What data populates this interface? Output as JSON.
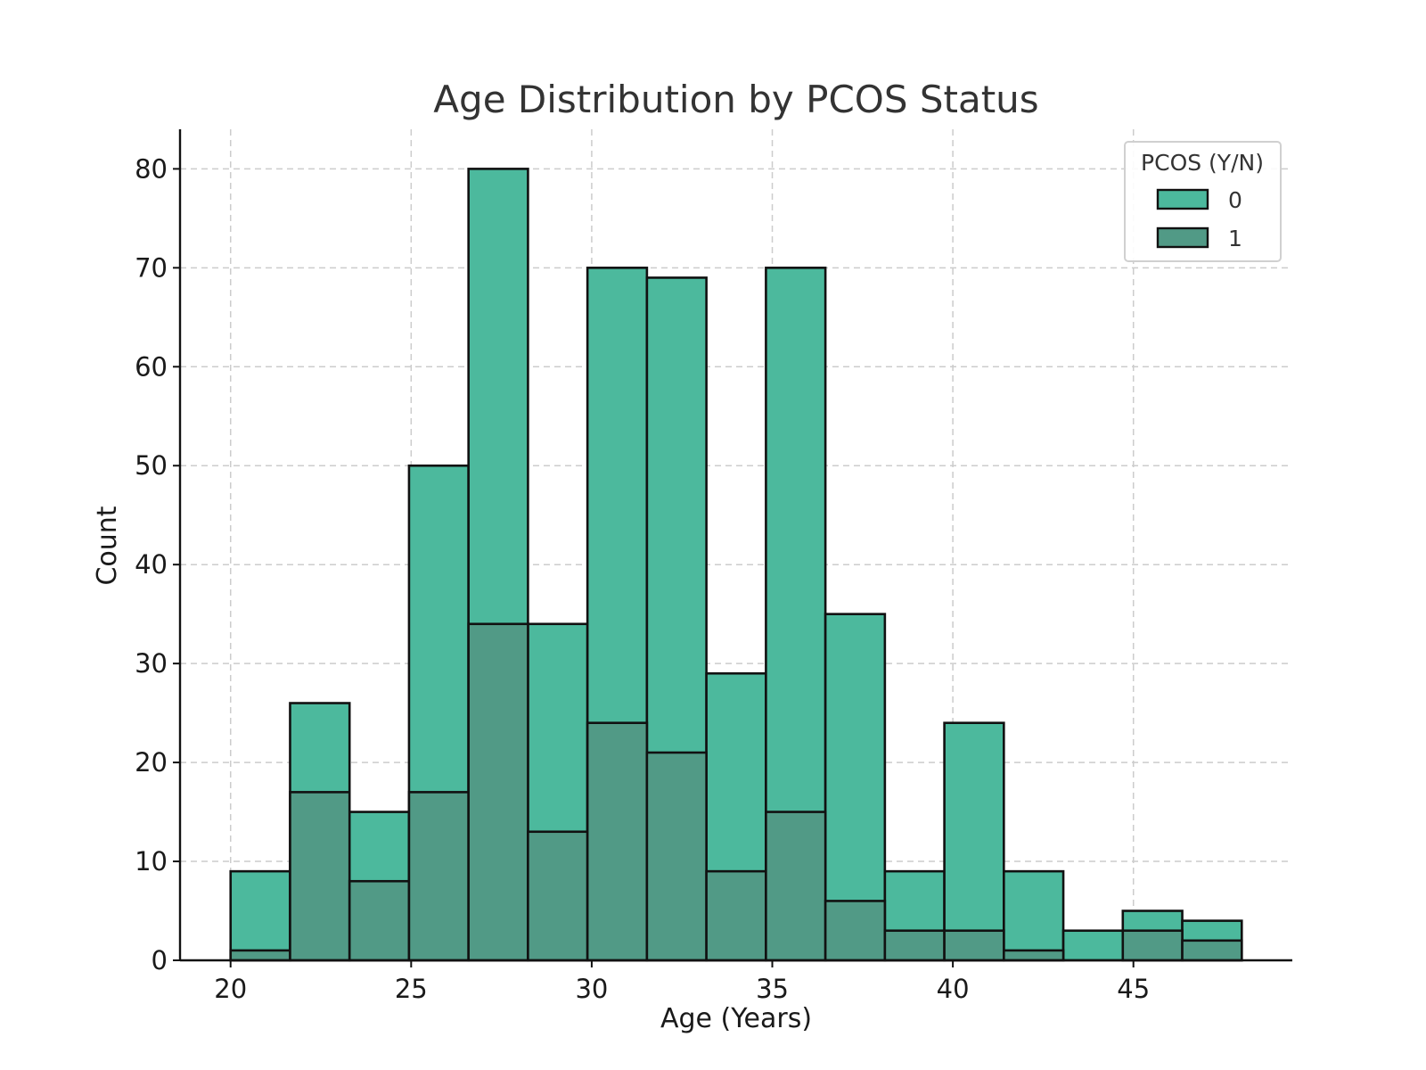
{
  "chart_data": {
    "type": "histogram",
    "title": "Age Distribution by PCOS Status",
    "xlabel": "Age (Years)",
    "ylabel": "Count",
    "xlim": [
      18.6,
      49.4
    ],
    "ylim": [
      0,
      84
    ],
    "x_ticks": [
      20,
      25,
      30,
      35,
      40,
      45
    ],
    "y_ticks": [
      0,
      10,
      20,
      30,
      40,
      50,
      60,
      70,
      80
    ],
    "bin_edges": [
      20,
      21.647,
      23.294,
      24.941,
      26.588,
      28.235,
      29.882,
      31.529,
      33.176,
      34.824,
      36.471,
      38.118,
      39.765,
      41.412,
      43.059,
      44.706,
      46.353,
      48
    ],
    "grid": true,
    "legend": {
      "title": "PCOS (Y/N)",
      "placement": "top-right",
      "entries": [
        "0",
        "1"
      ]
    },
    "series": [
      {
        "name": "0",
        "color": "#4cb99d",
        "values": [
          9,
          26,
          15,
          50,
          80,
          34,
          70,
          69,
          29,
          70,
          35,
          9,
          24,
          9,
          3,
          5,
          4
        ]
      },
      {
        "name": "1",
        "color": "#519a86",
        "values": [
          1,
          17,
          8,
          17,
          34,
          13,
          24,
          21,
          9,
          15,
          6,
          3,
          3,
          1,
          0,
          3,
          2
        ]
      }
    ]
  }
}
